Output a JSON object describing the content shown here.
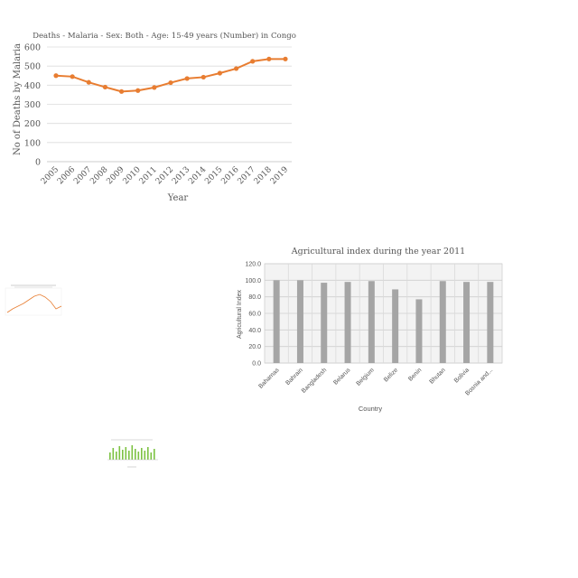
{
  "chart_data": [
    {
      "type": "line",
      "title": "Deaths - Malaria - Sex: Both - Age: 15-49 years (Number) in Congo",
      "xlabel": "Year",
      "ylabel": "No of Deaths by Malaria",
      "x": [
        "2005",
        "2006",
        "2007",
        "2008",
        "2009",
        "2010",
        "2011",
        "2012",
        "2013",
        "2014",
        "2015",
        "2016",
        "2017",
        "2018",
        "2019"
      ],
      "values": [
        450,
        445,
        415,
        390,
        367,
        372,
        388,
        413,
        435,
        442,
        463,
        487,
        525,
        537,
        537
      ],
      "ylim": [
        0,
        600
      ],
      "yticks": [
        "0",
        "100",
        "200",
        "300",
        "400",
        "500",
        "600"
      ],
      "grid": true,
      "color": "#E87D31"
    },
    {
      "type": "bar",
      "title": "Agricultural index during the year 2011",
      "xlabel": "Country",
      "ylabel": "Agricultural Index",
      "categories": [
        "Bahamas",
        "Bahrain",
        "Bangladesh",
        "Belarus",
        "Belgium",
        "Belize",
        "Benin",
        "Bhutan",
        "Bolivia",
        "Bosnia and..."
      ],
      "values": [
        100,
        100,
        97,
        98,
        99,
        89,
        77,
        99,
        98,
        98
      ],
      "ylim": [
        0,
        120
      ],
      "yticks": [
        "0.0",
        "20.0",
        "40.0",
        "60.0",
        "80.0",
        "100.0",
        "120.0"
      ],
      "grid": true,
      "color": "#A5A5A5"
    }
  ],
  "thumbnails": {
    "line_color": "#E87D31",
    "bar_color": "#7CC242"
  }
}
